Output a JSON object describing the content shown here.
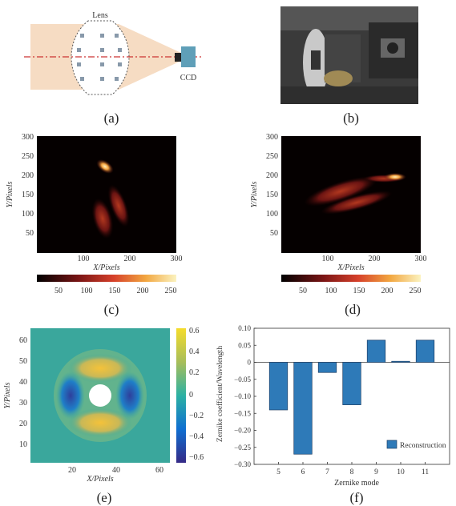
{
  "figure": {
    "panel_a": {
      "lens_label": "Lens",
      "ccd_label": "CCD",
      "caption": "(a)",
      "colors": {
        "beam": "#f6dcc3",
        "axis": "#cc3333",
        "ccd": "#5f9fb8"
      }
    },
    "panel_b": {
      "caption": "(b)"
    },
    "panel_c": {
      "caption": "(c)",
      "ylabel": "Y/Pixels",
      "xlabel": "X/Pixels",
      "y_ticks": [
        "300",
        "250",
        "200",
        "150",
        "100",
        "50"
      ],
      "x_ticks": [
        "100",
        "200",
        "300"
      ],
      "colorbar_ticks": [
        "50",
        "100",
        "150",
        "200",
        "250"
      ]
    },
    "panel_d": {
      "caption": "(d)",
      "ylabel": "Y/Pixels",
      "xlabel": "X/Pixels",
      "y_ticks": [
        "300",
        "250",
        "200",
        "150",
        "100",
        "50"
      ],
      "x_ticks": [
        "100",
        "200",
        "300"
      ],
      "colorbar_ticks": [
        "50",
        "100",
        "150",
        "200",
        "250"
      ]
    },
    "panel_e": {
      "caption": "(e)",
      "ylabel": "Y/Pixels",
      "xlabel": "X/Pixels",
      "y_ticks": [
        "60",
        "50",
        "40",
        "30",
        "20",
        "10"
      ],
      "x_ticks": [
        "20",
        "40",
        "60"
      ],
      "colorbar_ticks": [
        "0.6",
        "0.4",
        "0.2",
        "0",
        "−0.2",
        "−0.4",
        "−0.6"
      ]
    },
    "panel_f": {
      "caption": "(f)"
    }
  },
  "chart_data": {
    "type": "bar",
    "categories": [
      "5",
      "6",
      "7",
      "8",
      "9",
      "10",
      "11"
    ],
    "series": [
      {
        "name": "Reconstruction",
        "values": [
          -0.14,
          -0.27,
          -0.03,
          -0.125,
          0.065,
          0.003,
          0.065
        ],
        "color": "#2e7ab8"
      }
    ],
    "xlabel": "Zernike mode",
    "ylabel": "Zernike coefficient/Wavelength",
    "ylim": [
      -0.3,
      0.1
    ],
    "y_ticks": [
      "0.10",
      "0.05",
      "0",
      "−0.05",
      "−0.10",
      "−0.15",
      "−0.20",
      "−0.25",
      "−0.30"
    ],
    "legend": "bottom-right",
    "grid": false
  }
}
